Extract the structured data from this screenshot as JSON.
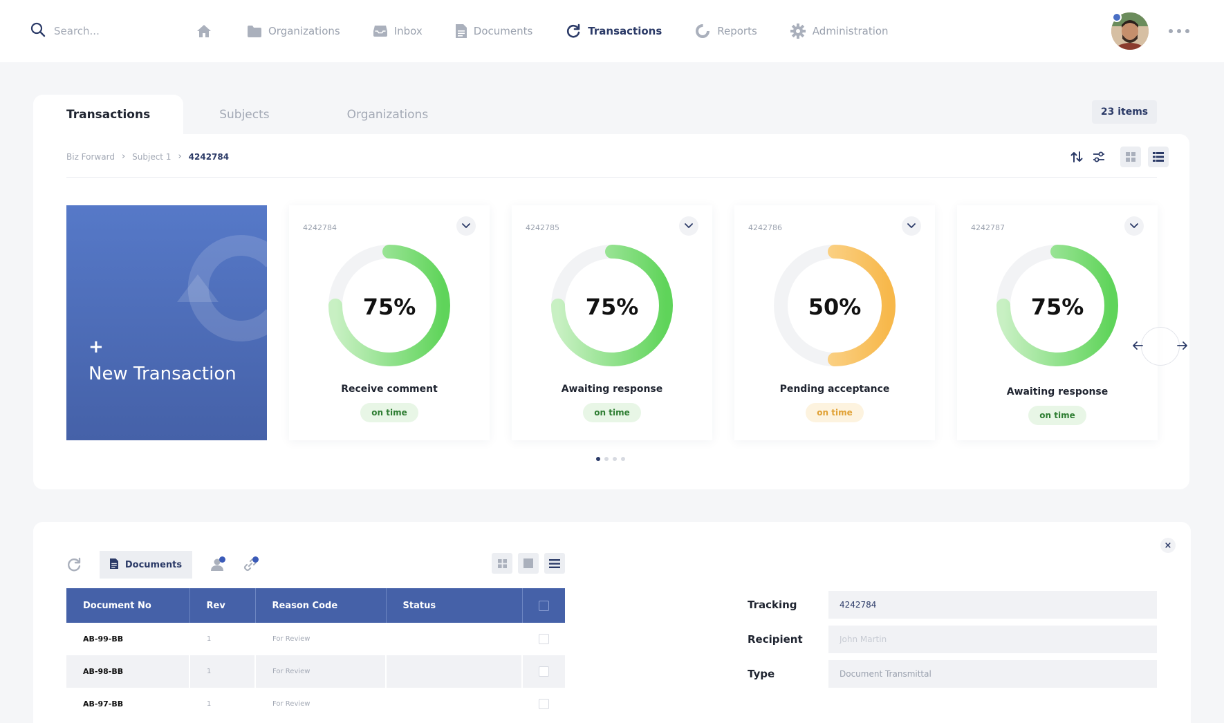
{
  "search": {
    "placeholder": "Search..."
  },
  "nav": {
    "items": [
      {
        "label": "",
        "icon": "home-icon"
      },
      {
        "label": "Organizations",
        "icon": "folder-icon"
      },
      {
        "label": "Inbox",
        "icon": "inbox-icon"
      },
      {
        "label": "Documents",
        "icon": "document-icon"
      },
      {
        "label": "Transactions",
        "icon": "refresh-icon",
        "active": true
      },
      {
        "label": "Reports",
        "icon": "pie-chart-icon"
      },
      {
        "label": "Administration",
        "icon": "gear-icon"
      }
    ]
  },
  "tabs": [
    "Transactions",
    "Subjects",
    "Organizations"
  ],
  "items_badge": "23 items",
  "breadcrumb": [
    "Biz Forward",
    "Subject 1",
    "4242784"
  ],
  "new_transaction": {
    "plus": "+",
    "label": "New Transaction"
  },
  "transactions": [
    {
      "id": "4242784",
      "percent_label": "75%",
      "progress": 0.75,
      "status": "Receive comment",
      "badge": "on time",
      "color": "green"
    },
    {
      "id": "4242785",
      "percent_label": "75%",
      "progress": 0.75,
      "status": "Awaiting response",
      "badge": "on time",
      "color": "green"
    },
    {
      "id": "4242786",
      "percent_label": "50%",
      "progress": 0.5,
      "status": "Pending acceptance",
      "badge": "on time",
      "color": "orange"
    },
    {
      "id": "4242787",
      "percent_label": "75%",
      "progress": 0.75,
      "status": "Awaiting response",
      "badge": "on time",
      "color": "green"
    }
  ],
  "pagination": {
    "pages": 4,
    "current": 1
  },
  "bottom": {
    "documents_tab": "Documents",
    "table": {
      "headers": [
        "Document No",
        "Rev",
        "Reason Code",
        "Status"
      ],
      "rows": [
        {
          "doc_no": "AB-99-BB",
          "rev": "1",
          "reason": "For Review",
          "status": ""
        },
        {
          "doc_no": "AB-98-BB",
          "rev": "1",
          "reason": "For Review",
          "status": ""
        },
        {
          "doc_no": "AB-97-BB",
          "rev": "1",
          "reason": "For Review",
          "status": ""
        }
      ]
    },
    "close_label": "×",
    "form": {
      "tracking": {
        "label": "Tracking",
        "value": "4242784"
      },
      "recipient": {
        "label": "Recipient",
        "placeholder": "John Martin"
      },
      "type": {
        "label": "Type",
        "value": "Document Transmittal"
      }
    }
  },
  "colors": {
    "accent": "#2b3a67",
    "primary": "#4561a8",
    "green": "#5fd45a",
    "orange": "#f7b84b"
  }
}
